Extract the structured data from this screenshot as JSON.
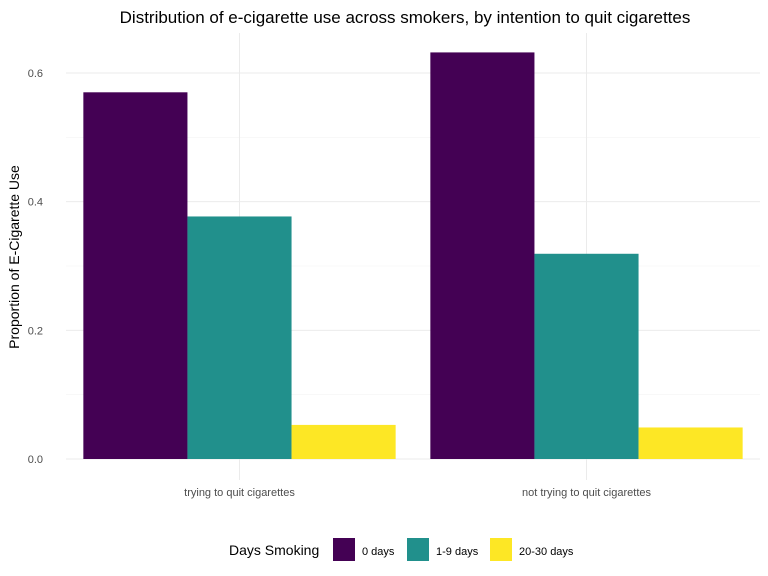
{
  "chart_data": {
    "type": "bar",
    "title": "Distribution of e-cigarette use across smokers, by intention to quit cigarettes",
    "xlabel": "",
    "ylabel": "Proportion of E-Cigarette Use",
    "categories": [
      "trying to quit cigarettes",
      "not trying to quit cigarettes"
    ],
    "series": [
      {
        "name": "0 days",
        "color": "#440154",
        "values": [
          0.57,
          0.632
        ]
      },
      {
        "name": "1-9 days",
        "color": "#21908C",
        "values": [
          0.377,
          0.319
        ]
      },
      {
        "name": "20-30 days",
        "color": "#FDE725",
        "values": [
          0.053,
          0.049
        ]
      }
    ],
    "ylim": [
      0,
      0.66
    ],
    "yticks": [
      0.0,
      0.2,
      0.4,
      0.6
    ],
    "ytick_labels": [
      "0.0",
      "0.2",
      "0.4",
      "0.6"
    ],
    "grid": true,
    "legend": {
      "title": "Days Smoking",
      "position": "bottom"
    }
  }
}
